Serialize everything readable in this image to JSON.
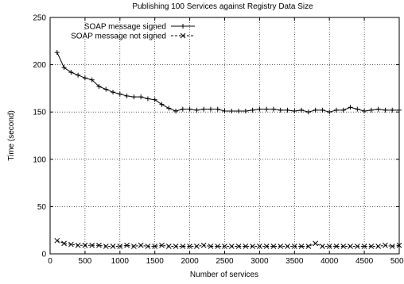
{
  "chart_data": {
    "type": "line",
    "title": "Publishing 100 Services against Registry Data Size",
    "xlabel": "Number of services",
    "ylabel": "Time (second)",
    "xlim": [
      0,
      5000
    ],
    "ylim": [
      0,
      250
    ],
    "xticks": [
      0,
      500,
      1000,
      1500,
      2000,
      2500,
      3000,
      3500,
      4000,
      4500,
      5000
    ],
    "yticks": [
      0,
      50,
      100,
      150,
      200,
      250
    ],
    "xtick_labels": [
      "0",
      "500",
      "1000",
      "1500",
      "2000",
      "2500",
      "3000",
      "3500",
      "4000",
      "4500",
      "5000"
    ],
    "ytick_labels": [
      "0",
      "50",
      "100",
      "150",
      "200",
      "250"
    ],
    "grid": true,
    "legend_position": "top-left",
    "series": [
      {
        "name": "SOAP message signed",
        "marker": "plus",
        "line": "solid",
        "x": [
          100,
          200,
          300,
          400,
          500,
          600,
          700,
          800,
          900,
          1000,
          1100,
          1200,
          1300,
          1400,
          1500,
          1600,
          1700,
          1800,
          1900,
          2000,
          2100,
          2200,
          2300,
          2400,
          2500,
          2600,
          2700,
          2800,
          2900,
          3000,
          3100,
          3200,
          3300,
          3400,
          3500,
          3600,
          3700,
          3800,
          3900,
          4000,
          4100,
          4200,
          4300,
          4400,
          4500,
          4600,
          4700,
          4800,
          4900,
          5000
        ],
        "values": [
          213,
          197,
          192,
          189,
          186,
          184,
          177,
          174,
          171,
          169,
          167,
          166,
          166,
          164,
          163,
          158,
          154,
          151,
          153,
          153,
          152,
          153,
          153,
          153,
          151,
          151,
          151,
          151,
          152,
          153,
          153,
          153,
          152,
          152,
          151,
          152,
          150,
          152,
          152,
          150,
          152,
          152,
          155,
          153,
          151,
          152,
          153,
          152,
          152,
          152
        ]
      },
      {
        "name": "SOAP message not signed",
        "marker": "cross",
        "line": "dashed",
        "x": [
          100,
          200,
          300,
          400,
          500,
          600,
          700,
          800,
          900,
          1000,
          1100,
          1200,
          1300,
          1400,
          1500,
          1600,
          1700,
          1800,
          1900,
          2000,
          2100,
          2200,
          2300,
          2400,
          2500,
          2600,
          2700,
          2800,
          2900,
          3000,
          3100,
          3200,
          3300,
          3400,
          3500,
          3600,
          3700,
          3800,
          3900,
          4000,
          4100,
          4200,
          4300,
          4400,
          4500,
          4600,
          4700,
          4800,
          4900,
          5000
        ],
        "values": [
          14,
          11,
          10,
          9,
          9,
          9,
          9,
          8,
          8,
          8,
          9,
          8,
          9,
          8,
          8,
          9,
          8,
          8,
          8,
          8,
          8,
          9,
          8,
          8,
          8,
          8,
          8,
          8,
          8,
          8,
          8,
          8,
          8,
          8,
          8,
          8,
          8,
          11,
          8,
          8,
          8,
          8,
          8,
          8,
          8,
          8,
          8,
          9,
          8,
          9
        ]
      }
    ]
  }
}
